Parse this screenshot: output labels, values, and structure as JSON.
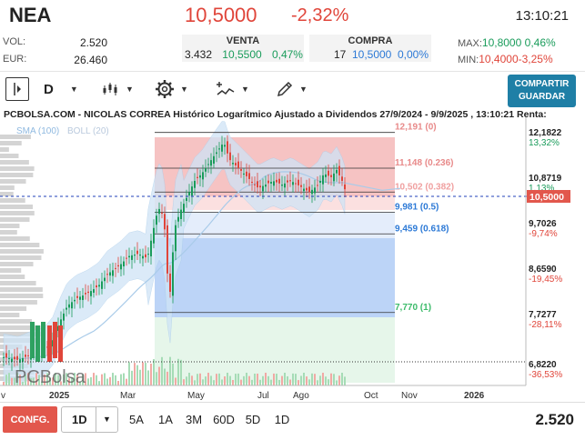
{
  "header": {
    "ticker": "NEA",
    "last_price": "10,5000",
    "change_pct": "-2,32%",
    "time": "13:10:21"
  },
  "stats": {
    "vol_label": "VOL:",
    "vol_value": "2.520",
    "eur_label": "EUR:",
    "eur_value": "26.460",
    "venta_label": "VENTA",
    "venta_qty": "3.432",
    "venta_price": "10,5500",
    "venta_pct": "0,47%",
    "compra_label": "COMPRA",
    "compra_qty": "17",
    "compra_price": "10,5000",
    "compra_pct": "0,00%",
    "max_label": "MAX:",
    "max_price": "10,8000",
    "max_pct": "0,46%",
    "min_label": "MIN:",
    "min_price": "10,4000",
    "min_pct": "-3,25%"
  },
  "toolbar": {
    "period": "D",
    "save_label_1": "COMPARTIR",
    "save_label_2": "GUARDAR",
    "icons": [
      "sidebar-toggle-icon",
      "candlestick-icon",
      "gear-icon",
      "indicators-icon",
      "pencil-icon"
    ]
  },
  "bottom": {
    "config_label": "CONFG.",
    "interval": "1D",
    "ranges": [
      "5A",
      "1A",
      "3M",
      "60D",
      "5D",
      "1D"
    ],
    "volume": "2.520"
  },
  "chart_data": {
    "type": "candlestick",
    "title": "PCBOLSA.COM - NICOLAS CORREA Histórico Logarítmico Ajustado a Dividendos 27/9/2024 - 9/9/2025 , 13:10:21 Renta:",
    "legend": [
      "SMA (100)",
      "BOLL (20)"
    ],
    "watermark": "PCBolsa",
    "x_tick_labels": [
      "v",
      "2025",
      "Mar",
      "May",
      "Jul",
      "Ago",
      "Oct",
      "Nov",
      "2026"
    ],
    "y_scale": "log",
    "y_tick_labels": [
      {
        "value": "12,1822",
        "pct": "13,32%",
        "pct_color": "#1a9c5b"
      },
      {
        "value": "10,8719",
        "pct": "1,13%",
        "pct_color": "#1a9c5b"
      },
      {
        "value": "9,7026",
        "pct": "-9,74%",
        "pct_color": "#e0453a"
      },
      {
        "value": "8,6590",
        "pct": "-19,45%",
        "pct_color": "#e0453a"
      },
      {
        "value": "7,7277",
        "pct": "-28,11%",
        "pct_color": "#e0453a"
      },
      {
        "value": "6,8220",
        "pct": "-36,53%",
        "pct_color": "#e0453a"
      }
    ],
    "current_price_label": "10,5000",
    "fibonacci": [
      {
        "price": 12.191,
        "label": "12,191 (0)",
        "color": "#e88a8a"
      },
      {
        "price": 11.148,
        "label": "11,148 (0.236)",
        "color": "#e88a8a"
      },
      {
        "price": 10.502,
        "label": "10,502 (0.382)",
        "color": "#f0a0a0"
      },
      {
        "price": 9.981,
        "label": "9,981 (0.5)",
        "color": "#2c79d6"
      },
      {
        "price": 9.459,
        "label": "9,459 (0.618)",
        "color": "#2c79d6"
      },
      {
        "price": 7.77,
        "label": "7,770 (1)",
        "color": "#3cbb6a"
      }
    ]
  }
}
